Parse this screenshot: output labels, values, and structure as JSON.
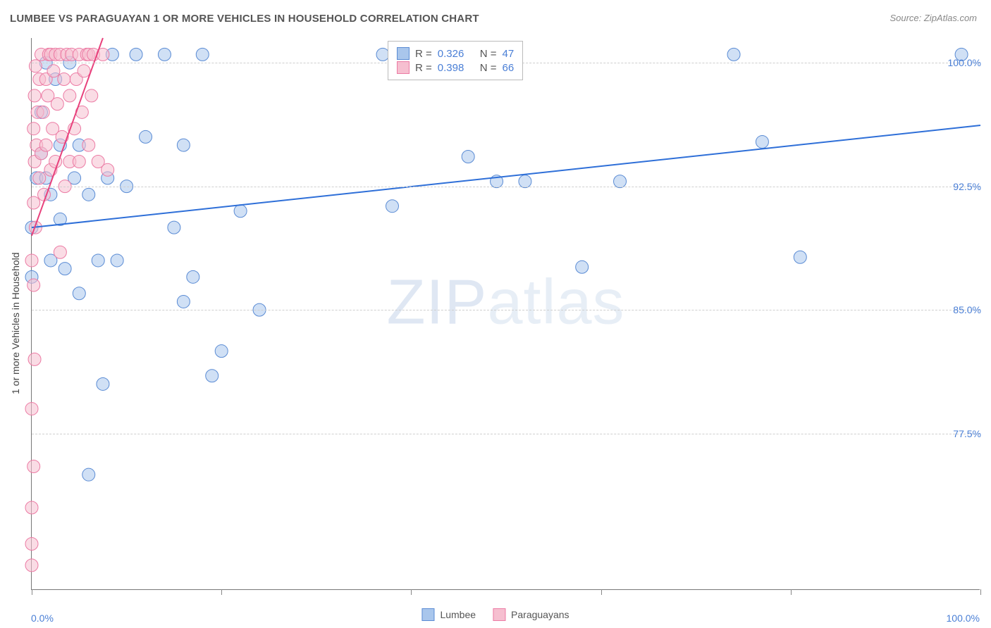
{
  "title": "LUMBEE VS PARAGUAYAN 1 OR MORE VEHICLES IN HOUSEHOLD CORRELATION CHART",
  "source": "Source: ZipAtlas.com",
  "watermark_a": "ZIP",
  "watermark_b": "atlas",
  "chart": {
    "type": "scatter",
    "y_label": "1 or more Vehicles in Household",
    "xlim": [
      0,
      100
    ],
    "ylim": [
      68,
      101.5
    ],
    "x_ticks": [
      0,
      20,
      40,
      60,
      80,
      100
    ],
    "x_tick_labels": {
      "0": "0.0%",
      "100": "100.0%"
    },
    "y_grid": [
      77.5,
      85.0,
      92.5,
      100.0
    ],
    "y_tick_labels": {
      "77.5": "77.5%",
      "85.0": "85.0%",
      "92.5": "92.5%",
      "100.0": "100.0%"
    },
    "marker_radius": 9,
    "marker_opacity": 0.55,
    "line_width": 2,
    "series": [
      {
        "name": "Lumbee",
        "color_fill": "#a9c6ec",
        "color_stroke": "#5a8bd4",
        "line_color": "#2e6fd8",
        "R": "0.326",
        "N": "47",
        "trend": {
          "x1": 0,
          "y1": 90.0,
          "x2": 100,
          "y2": 96.2
        },
        "points": [
          [
            0,
            87
          ],
          [
            0,
            90
          ],
          [
            0.5,
            93
          ],
          [
            1,
            94.5
          ],
          [
            1,
            97
          ],
          [
            1.5,
            100
          ],
          [
            1.5,
            93
          ],
          [
            2,
            92
          ],
          [
            2,
            88
          ],
          [
            2.5,
            99
          ],
          [
            3,
            90.5
          ],
          [
            3,
            95
          ],
          [
            3.5,
            87.5
          ],
          [
            4,
            100
          ],
          [
            4.5,
            93
          ],
          [
            5,
            86
          ],
          [
            5,
            95
          ],
          [
            6,
            75
          ],
          [
            6,
            92
          ],
          [
            7,
            88
          ],
          [
            7.5,
            80.5
          ],
          [
            8,
            93
          ],
          [
            8.5,
            100.5
          ],
          [
            9,
            88
          ],
          [
            10,
            92.5
          ],
          [
            11,
            100.5
          ],
          [
            12,
            95.5
          ],
          [
            14,
            100.5
          ],
          [
            15,
            90
          ],
          [
            16,
            85.5
          ],
          [
            16,
            95
          ],
          [
            17,
            87
          ],
          [
            18,
            100.5
          ],
          [
            19,
            81
          ],
          [
            20,
            82.5
          ],
          [
            22,
            91
          ],
          [
            24,
            85
          ],
          [
            37,
            100.5
          ],
          [
            38,
            91.3
          ],
          [
            40,
            100.5
          ],
          [
            46,
            94.3
          ],
          [
            49,
            92.8
          ],
          [
            51,
            100.5
          ],
          [
            52,
            92.8
          ],
          [
            58,
            87.6
          ],
          [
            62,
            92.8
          ],
          [
            74,
            100.5
          ],
          [
            77,
            95.2
          ],
          [
            81,
            88.2
          ],
          [
            98,
            100.5
          ]
        ]
      },
      {
        "name": "Paraguayans",
        "color_fill": "#f6bfd0",
        "color_stroke": "#ec7ba4",
        "line_color": "#e8417c",
        "R": "0.398",
        "N": "66",
        "trend": {
          "x1": 0,
          "y1": 89.5,
          "x2": 7.5,
          "y2": 101.5
        },
        "points": [
          [
            0,
            69.5
          ],
          [
            0,
            70.8
          ],
          [
            0,
            73
          ],
          [
            0.2,
            75.5
          ],
          [
            0,
            79
          ],
          [
            0.3,
            82
          ],
          [
            0.2,
            86.5
          ],
          [
            0,
            88
          ],
          [
            0.4,
            90
          ],
          [
            0.2,
            91.5
          ],
          [
            0.8,
            93
          ],
          [
            0.3,
            94
          ],
          [
            0.5,
            95
          ],
          [
            0.2,
            96
          ],
          [
            0.6,
            97
          ],
          [
            0.3,
            98
          ],
          [
            0.8,
            99
          ],
          [
            0.4,
            99.8
          ],
          [
            1,
            100.5
          ],
          [
            1,
            94.5
          ],
          [
            1.2,
            97
          ],
          [
            1.3,
            92
          ],
          [
            1.5,
            99
          ],
          [
            1.5,
            95
          ],
          [
            1.7,
            98
          ],
          [
            1.8,
            100.5
          ],
          [
            2,
            93.5
          ],
          [
            2,
            100.5
          ],
          [
            2.2,
            96
          ],
          [
            2.3,
            99.5
          ],
          [
            2.5,
            94
          ],
          [
            2.5,
            100.5
          ],
          [
            2.7,
            97.5
          ],
          [
            3,
            88.5
          ],
          [
            3,
            100.5
          ],
          [
            3.2,
            95.5
          ],
          [
            3.4,
            99
          ],
          [
            3.5,
            92.5
          ],
          [
            3.7,
            100.5
          ],
          [
            4,
            94
          ],
          [
            4,
            98
          ],
          [
            4.2,
            100.5
          ],
          [
            4.5,
            96
          ],
          [
            4.7,
            99
          ],
          [
            5,
            94
          ],
          [
            5,
            100.5
          ],
          [
            5.3,
            97
          ],
          [
            5.5,
            99.5
          ],
          [
            5.8,
            100.5
          ],
          [
            6,
            95
          ],
          [
            6,
            100.5
          ],
          [
            6.3,
            98
          ],
          [
            6.5,
            100.5
          ],
          [
            7,
            94
          ],
          [
            7.5,
            100.5
          ],
          [
            8,
            93.5
          ]
        ]
      }
    ]
  },
  "legend_top": {
    "rows": [
      {
        "swatch_fill": "#a9c6ec",
        "swatch_stroke": "#5a8bd4",
        "r_label": "R =",
        "r_val": "0.326",
        "n_label": "N =",
        "n_val": "47"
      },
      {
        "swatch_fill": "#f6bfd0",
        "swatch_stroke": "#ec7ba4",
        "r_label": "R =",
        "r_val": "0.398",
        "n_label": "N =",
        "n_val": "66"
      }
    ]
  },
  "legend_bottom": {
    "items": [
      {
        "swatch_fill": "#a9c6ec",
        "swatch_stroke": "#5a8bd4",
        "label": "Lumbee"
      },
      {
        "swatch_fill": "#f6bfd0",
        "swatch_stroke": "#ec7ba4",
        "label": "Paraguayans"
      }
    ]
  }
}
